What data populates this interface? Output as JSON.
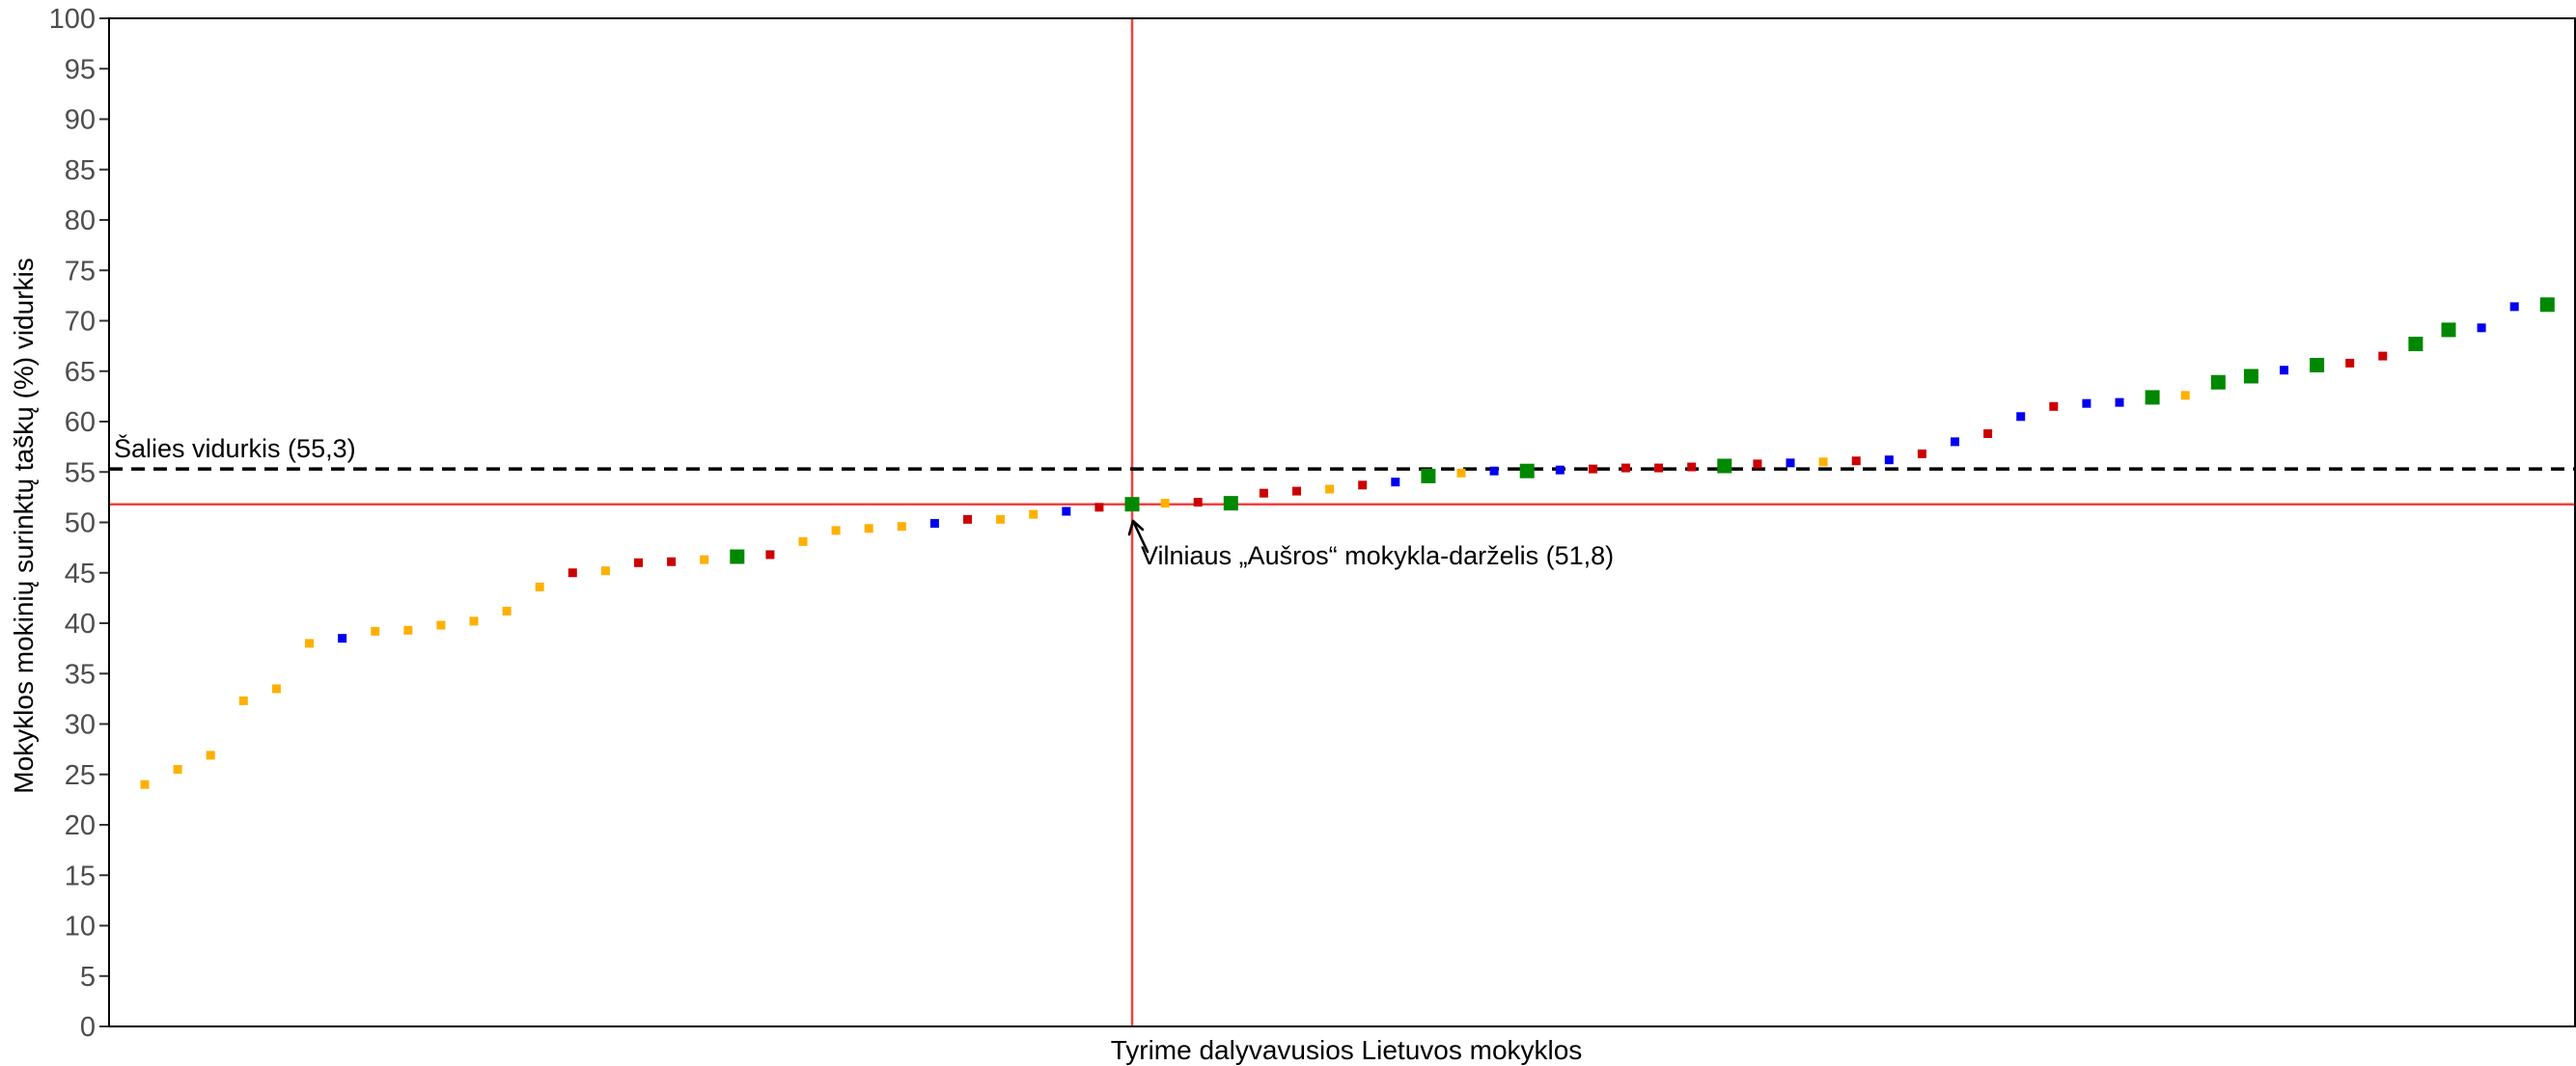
{
  "chart_data": {
    "type": "scatter",
    "title": "",
    "xlabel": "Tyrime dalyvavusios Lietuvos mokyklos",
    "ylabel": "Mokyklos mokinių surinktų taškų (%) vidurkis",
    "ylim": [
      0,
      100
    ],
    "y_ticks": [
      0,
      5,
      10,
      15,
      20,
      25,
      30,
      35,
      40,
      45,
      50,
      55,
      60,
      65,
      70,
      75,
      80,
      85,
      90,
      95,
      100
    ],
    "grid": false,
    "x_count": 75,
    "colors": {
      "orange": "#FFB000",
      "red": "#CC0000",
      "blue": "#0000EE",
      "green": "#008800",
      "highlight_line": "#F04040",
      "average_line": "#000000"
    },
    "points": [
      {
        "x": 1,
        "y": 24.0,
        "c": "orange"
      },
      {
        "x": 2,
        "y": 25.5,
        "c": "orange"
      },
      {
        "x": 3,
        "y": 26.9,
        "c": "orange"
      },
      {
        "x": 4,
        "y": 32.3,
        "c": "orange"
      },
      {
        "x": 5,
        "y": 33.5,
        "c": "orange"
      },
      {
        "x": 6,
        "y": 38.0,
        "c": "orange"
      },
      {
        "x": 7,
        "y": 38.5,
        "c": "blue"
      },
      {
        "x": 8,
        "y": 39.2,
        "c": "orange"
      },
      {
        "x": 9,
        "y": 39.3,
        "c": "orange"
      },
      {
        "x": 10,
        "y": 39.8,
        "c": "orange"
      },
      {
        "x": 11,
        "y": 40.2,
        "c": "orange"
      },
      {
        "x": 12,
        "y": 41.2,
        "c": "orange"
      },
      {
        "x": 13,
        "y": 43.6,
        "c": "orange"
      },
      {
        "x": 14,
        "y": 45.0,
        "c": "red"
      },
      {
        "x": 15,
        "y": 45.2,
        "c": "orange"
      },
      {
        "x": 16,
        "y": 46.0,
        "c": "red"
      },
      {
        "x": 17,
        "y": 46.1,
        "c": "red"
      },
      {
        "x": 18,
        "y": 46.3,
        "c": "orange"
      },
      {
        "x": 19,
        "y": 46.6,
        "c": "green",
        "big": true
      },
      {
        "x": 20,
        "y": 46.8,
        "c": "red"
      },
      {
        "x": 21,
        "y": 48.1,
        "c": "orange"
      },
      {
        "x": 22,
        "y": 49.2,
        "c": "orange"
      },
      {
        "x": 23,
        "y": 49.4,
        "c": "orange"
      },
      {
        "x": 24,
        "y": 49.6,
        "c": "orange"
      },
      {
        "x": 25,
        "y": 49.9,
        "c": "blue"
      },
      {
        "x": 26,
        "y": 50.3,
        "c": "red"
      },
      {
        "x": 27,
        "y": 50.3,
        "c": "orange"
      },
      {
        "x": 28,
        "y": 50.8,
        "c": "orange"
      },
      {
        "x": 29,
        "y": 51.1,
        "c": "blue"
      },
      {
        "x": 30,
        "y": 51.5,
        "c": "red"
      },
      {
        "x": 31,
        "y": 51.8,
        "c": "green",
        "big": true,
        "highlight": true
      },
      {
        "x": 32,
        "y": 51.9,
        "c": "orange"
      },
      {
        "x": 33,
        "y": 52.0,
        "c": "red"
      },
      {
        "x": 34,
        "y": 51.9,
        "c": "green",
        "big": true
      },
      {
        "x": 35,
        "y": 52.9,
        "c": "red"
      },
      {
        "x": 36,
        "y": 53.1,
        "c": "red"
      },
      {
        "x": 37,
        "y": 53.3,
        "c": "orange"
      },
      {
        "x": 38,
        "y": 53.7,
        "c": "red"
      },
      {
        "x": 39,
        "y": 54.0,
        "c": "blue"
      },
      {
        "x": 40,
        "y": 54.6,
        "c": "green",
        "big": true
      },
      {
        "x": 41,
        "y": 54.9,
        "c": "orange"
      },
      {
        "x": 42,
        "y": 55.1,
        "c": "blue"
      },
      {
        "x": 43,
        "y": 55.1,
        "c": "green",
        "big": true
      },
      {
        "x": 44,
        "y": 55.2,
        "c": "blue"
      },
      {
        "x": 45,
        "y": 55.3,
        "c": "red"
      },
      {
        "x": 46,
        "y": 55.4,
        "c": "red"
      },
      {
        "x": 47,
        "y": 55.4,
        "c": "red"
      },
      {
        "x": 48,
        "y": 55.5,
        "c": "red"
      },
      {
        "x": 49,
        "y": 55.6,
        "c": "green",
        "big": true
      },
      {
        "x": 50,
        "y": 55.8,
        "c": "red"
      },
      {
        "x": 51,
        "y": 55.9,
        "c": "blue"
      },
      {
        "x": 52,
        "y": 56.0,
        "c": "orange"
      },
      {
        "x": 53,
        "y": 56.1,
        "c": "red"
      },
      {
        "x": 54,
        "y": 56.2,
        "c": "blue"
      },
      {
        "x": 55,
        "y": 56.8,
        "c": "red"
      },
      {
        "x": 56,
        "y": 58.0,
        "c": "blue"
      },
      {
        "x": 57,
        "y": 58.8,
        "c": "red"
      },
      {
        "x": 58,
        "y": 60.5,
        "c": "blue"
      },
      {
        "x": 59,
        "y": 61.5,
        "c": "red"
      },
      {
        "x": 60,
        "y": 61.8,
        "c": "blue"
      },
      {
        "x": 61,
        "y": 61.9,
        "c": "blue"
      },
      {
        "x": 62,
        "y": 62.4,
        "c": "green",
        "big": true
      },
      {
        "x": 63,
        "y": 62.6,
        "c": "orange"
      },
      {
        "x": 64,
        "y": 63.9,
        "c": "green",
        "big": true
      },
      {
        "x": 65,
        "y": 64.5,
        "c": "green",
        "big": true
      },
      {
        "x": 66,
        "y": 65.1,
        "c": "blue"
      },
      {
        "x": 67,
        "y": 65.6,
        "c": "green",
        "big": true
      },
      {
        "x": 68,
        "y": 65.8,
        "c": "red"
      },
      {
        "x": 69,
        "y": 66.5,
        "c": "red"
      },
      {
        "x": 70,
        "y": 67.7,
        "c": "green",
        "big": true
      },
      {
        "x": 71,
        "y": 69.1,
        "c": "green",
        "big": true
      },
      {
        "x": 72,
        "y": 69.3,
        "c": "blue"
      },
      {
        "x": 73,
        "y": 71.4,
        "c": "blue"
      },
      {
        "x": 74,
        "y": 71.6,
        "c": "green",
        "big": true
      }
    ],
    "average": {
      "value": 55.3,
      "label": "Šalies vidurkis (55,3)"
    },
    "highlight": {
      "x": 31,
      "value": 51.8,
      "label": "Vilniaus „Aušros“ mokykla-darželis (51,8)"
    }
  }
}
